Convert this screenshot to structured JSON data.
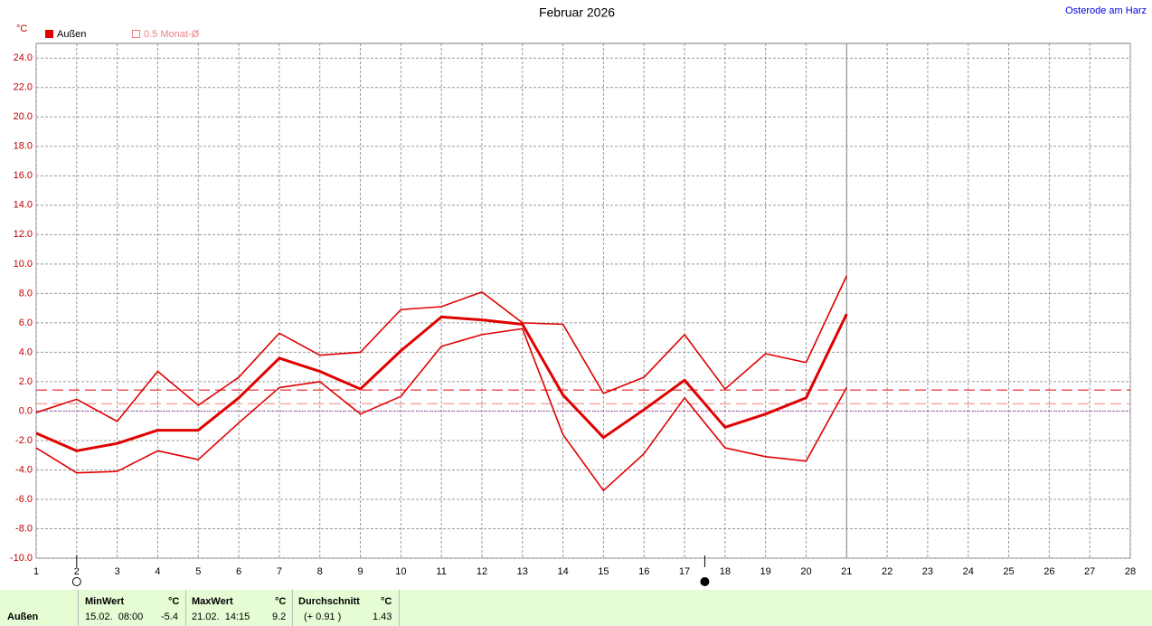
{
  "chart_data": {
    "type": "line",
    "title": "Februar 2026",
    "location": "Osterode am Harz",
    "unit": "°C",
    "x": [
      1,
      2,
      3,
      4,
      5,
      6,
      7,
      8,
      9,
      10,
      11,
      12,
      13,
      14,
      15,
      16,
      17,
      18,
      19,
      20,
      21
    ],
    "series": [
      {
        "name": "Außen",
        "color": "#e00000",
        "role": "mean",
        "values": [
          -1.5,
          -2.7,
          -2.2,
          -1.3,
          -1.3,
          0.9,
          3.6,
          2.7,
          1.5,
          4.1,
          6.4,
          6.2,
          5.9,
          1.1,
          -1.8,
          0.1,
          2.1,
          -1.1,
          -0.2,
          0.9,
          6.6
        ]
      },
      {
        "color": "#e00000",
        "role": "max",
        "values": [
          -0.1,
          0.8,
          -0.7,
          2.7,
          0.4,
          2.3,
          5.3,
          3.8,
          4.0,
          6.9,
          7.1,
          8.1,
          6.0,
          5.9,
          1.2,
          2.3,
          5.2,
          1.5,
          3.9,
          3.3,
          9.2
        ]
      },
      {
        "color": "#e00000",
        "role": "min",
        "values": [
          -2.5,
          -4.2,
          -4.1,
          -2.7,
          -3.3,
          -0.8,
          1.6,
          2.0,
          -0.2,
          1.0,
          4.4,
          5.2,
          5.6,
          -1.6,
          -5.4,
          -2.9,
          0.9,
          -2.5,
          -3.1,
          -3.4,
          1.6
        ]
      }
    ],
    "monthly_mean": {
      "value": 0.5,
      "label": "0.5 Monat-Ø"
    },
    "current_day": 21,
    "full_moon_day": 2,
    "new_moon_day": 17.5,
    "xlim": [
      1,
      28
    ],
    "xticks": [
      1,
      2,
      3,
      4,
      5,
      6,
      7,
      8,
      9,
      10,
      11,
      12,
      13,
      14,
      15,
      16,
      17,
      18,
      19,
      20,
      21,
      22,
      23,
      24,
      25,
      26,
      27,
      28
    ],
    "ylim": [
      -10,
      25
    ],
    "yticks": [
      {
        "value": -10,
        "label": "-10.0"
      },
      {
        "value": -8,
        "label": "-8.0"
      },
      {
        "value": -6,
        "label": "-6.0"
      },
      {
        "value": -4,
        "label": "-4.0"
      },
      {
        "value": -2,
        "label": "-2.0"
      },
      {
        "value": 0,
        "label": "0.0"
      },
      {
        "value": 2,
        "label": "2.0"
      },
      {
        "value": 4,
        "label": "4.0"
      },
      {
        "value": 6,
        "label": "6.0"
      },
      {
        "value": 8,
        "label": "8.0"
      },
      {
        "value": 10,
        "label": "10.0"
      },
      {
        "value": 12,
        "label": "12.0"
      },
      {
        "value": 14,
        "label": "14.0"
      },
      {
        "value": 16,
        "label": "16.0"
      },
      {
        "value": 18,
        "label": "18.0"
      },
      {
        "value": 20,
        "label": "20.0"
      },
      {
        "value": 22,
        "label": "22.0"
      },
      {
        "value": 24,
        "label": "24.0"
      }
    ],
    "grid": true,
    "summary": {
      "sensor": "Außen",
      "min": {
        "label": "MinWert",
        "unit": "°C",
        "time": "15.02.  08:00",
        "value": -5.4
      },
      "max": {
        "label": "MaxWert",
        "unit": "°C",
        "time": "21.02.  14:15",
        "value": 9.2
      },
      "avg": {
        "label": "Durchschnitt",
        "unit": "°C",
        "deviation": "(+ 0.91 )",
        "value": 1.43
      }
    }
  }
}
